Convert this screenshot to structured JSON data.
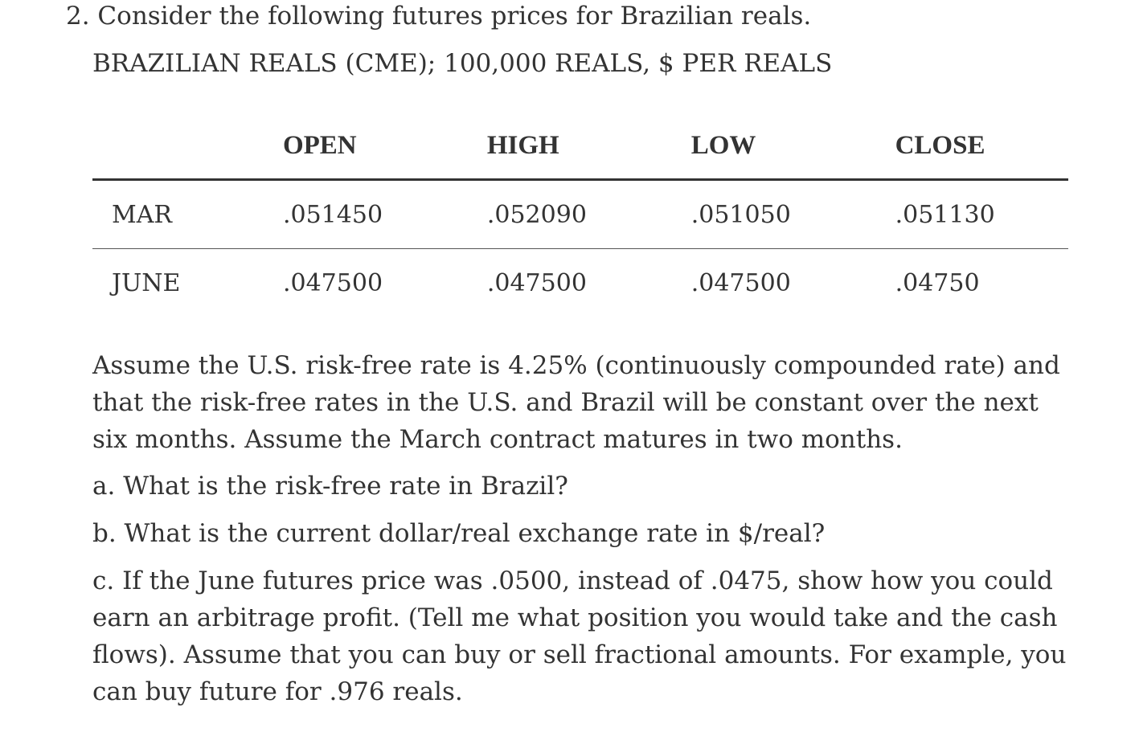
{
  "question": {
    "text": "2. Consider the following futures prices for Brazilian reals."
  },
  "table": {
    "title": "BRAZILIAN REALS (CME); 100,000 REALS, $ PER REALS",
    "headers": [
      "",
      "OPEN",
      "HIGH",
      "LOW",
      "CLOSE"
    ],
    "rows": [
      {
        "label": "MAR",
        "open": ".051450",
        "high": ".052090",
        "low": ".051050",
        "close": ".051130"
      },
      {
        "label": "JUNE",
        "open": ".047500",
        "high": ".047500",
        "low": ".047500",
        "close": ".04750"
      }
    ]
  },
  "body": {
    "assumption": "Assume the U.S. risk-free rate is 4.25% (continuously compounded rate) and that the risk-free rates in the U.S. and Brazil will be constant over the next six months. Assume the March contract matures in two months.",
    "part_a": "a. What is the risk-free rate in Brazil?",
    "part_b": "b. What is the current dollar/real exchange rate in $/real?",
    "part_c": "c. If the June futures price was .0500, instead of .0475, show how you could earn an arbitrage profit. (Tell me what position you would take and the cash flows). Assume that you can buy or sell fractional amounts. For example, you can buy future for .976 reals."
  }
}
